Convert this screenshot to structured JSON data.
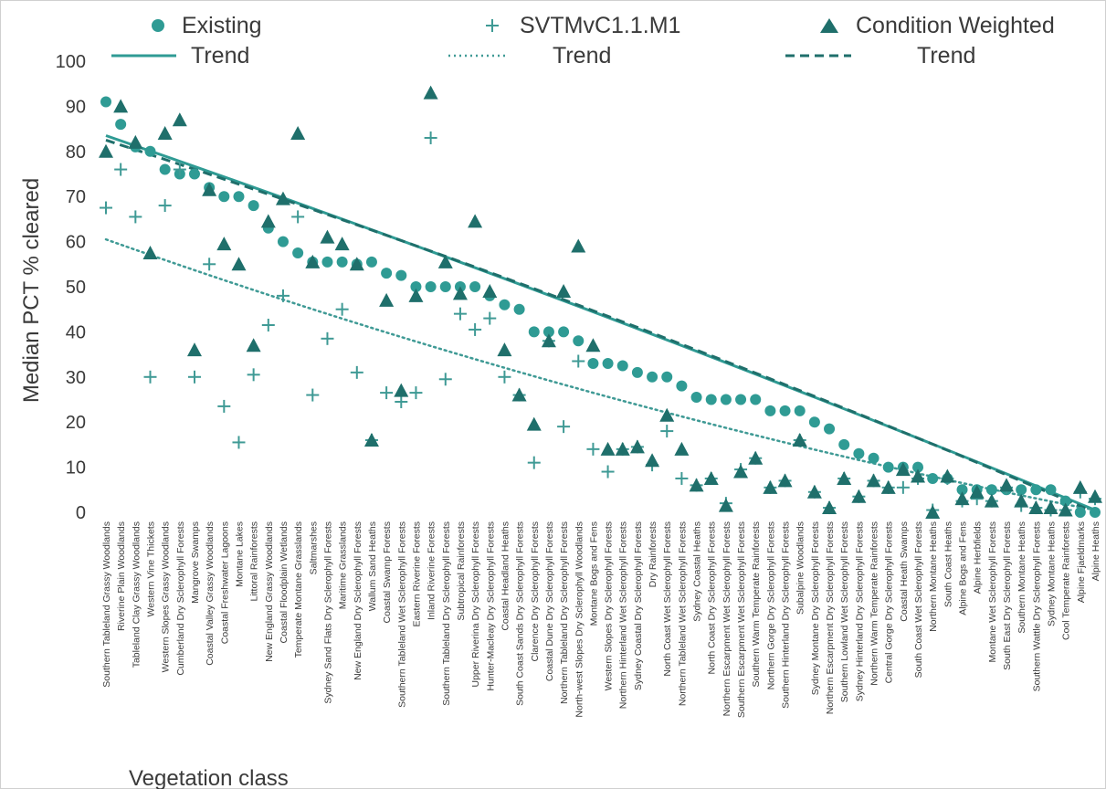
{
  "colors": {
    "existing": "#2f9b94",
    "svtm": "#3f9a95",
    "condition": "#1f6f6b",
    "trend_solid": "#2f9b94",
    "trend_dotted": "#3f9a95",
    "trend_dashed": "#1f6f6b",
    "text": "#3a3a3a"
  },
  "legend": {
    "existing": "Existing",
    "svtm": "SVTMvC1.1.M1",
    "condition": "Condition Weighted",
    "trend1": "Trend",
    "trend2": "Trend",
    "trend3": "Trend"
  },
  "chart_data": {
    "type": "scatter",
    "title": "",
    "xlabel": "Vegetation class",
    "ylabel": "Median PCT % cleared",
    "ylim": [
      0,
      100
    ],
    "y_ticks": [
      0,
      10,
      20,
      30,
      40,
      50,
      60,
      70,
      80,
      90,
      100
    ],
    "grid": false,
    "legend_position": "top",
    "categories": [
      "Southern Tableland Grassy Woodlands",
      "Riverine Plain Woodlands",
      "Tableland Clay Grassy Woodlands",
      "Western Vine Thickets",
      "Western Slopes Grassy Woodlands",
      "Cumberland Dry Sclerophyll Forests",
      "Mangrove Swamps",
      "Coastal Valley Grassy Woodlands",
      "Coastal Freshwater Lagoons",
      "Montane Lakes",
      "Littoral Rainforests",
      "New England Grassy Woodlands",
      "Coastal Floodplain Wetlands",
      "Temperate Montane Grasslands",
      "Saltmarshes",
      "Sydney Sand Flats Dry Sclerophyll Forests",
      "Maritime Grasslands",
      "New England Dry Sclerophyll Forests",
      "Wallum Sand Heaths",
      "Coastal Swamp Forests",
      "Southern Tableland Wet Sclerophyll Forests",
      "Eastern Riverine Forests",
      "Inland Riverine Forests",
      "Southern Tableland Dry Sclerophyll Forests",
      "Subtropical Rainforests",
      "Upper Riverina Dry Sclerophyll Forests",
      "Hunter-Macleay Dry Sclerophyll Forests",
      "Coastal Headland Heaths",
      "South Coast Sands Dry Sclerophyll Forests",
      "Clarence Dry Sclerophyll Forests",
      "Coastal Dune Dry Sclerophyll Forests",
      "Northern Tableland Dry Sclerophyll Forests",
      "North-west Slopes Dry Sclerophyll Woodlands",
      "Montane Bogs and Fens",
      "Western Slopes Dry Sclerophyll Forests",
      "Northern Hinterland Wet Sclerophyll Forests",
      "Sydney Coastal Dry Sclerophyll Forests",
      "Dry Rainforests",
      "North Coast Wet Sclerophyll Forests",
      "Northern Tableland Wet Sclerophyll Forests",
      "Sydney Coastal Heaths",
      "North Coast Dry Sclerophyll Forests",
      "Northern Escarpment Wet Sclerophyll Forests",
      "Southern Escarpment Wet Sclerophyll Forests",
      "Southern Warm Temperate Rainforests",
      "Northern Gorge Dry Sclerophyll Forests",
      "Southern Hinterland Dry Sclerophyll Forests",
      "Subalpine Woodlands",
      "Sydney Montane Dry Sclerophyll Forests",
      "Northern Escarpment Dry Sclerophyll Forests",
      "Southern Lowland Wet Sclerophyll Forests",
      "Sydney Hinterland Dry Sclerophyll Forests",
      "Northern Warm Temperate Rainforests",
      "Central Gorge Dry Sclerophyll Forests",
      "Coastal Heath Swamps",
      "South Coast Wet Sclerophyll Forests",
      "Northern Montane Heaths",
      "South Coast Heaths",
      "Alpine Bogs and Fens",
      "Alpine Herbfields",
      "Montane Wet Sclerophyll Forests",
      "South East Dry Sclerophyll Forests",
      "Southern Montane Heaths",
      "Southern Wattle Dry Sclerophyll Forests",
      "Sydney Montane Heaths",
      "Cool Temperate Rainforests",
      "Alpine Fjaeldmarks",
      "Alpine Heaths"
    ],
    "series": [
      {
        "name": "Existing",
        "marker": "circle",
        "values": [
          91,
          86,
          81,
          80,
          76,
          75,
          75,
          72,
          70,
          70,
          68,
          63,
          60,
          57.5,
          55.5,
          55.5,
          55.5,
          55,
          55.5,
          53,
          52.5,
          50,
          50,
          50,
          50,
          50,
          48,
          46,
          45,
          40,
          40,
          40,
          38,
          33,
          33,
          32.5,
          31,
          30,
          30,
          28,
          25.5,
          25,
          25,
          25,
          25,
          22.5,
          22.5,
          22.5,
          20,
          18.5,
          15,
          13,
          12,
          10,
          10,
          10,
          7.5,
          7.5,
          5,
          5,
          5,
          5,
          5,
          5,
          5,
          2.5,
          0,
          0
        ]
      },
      {
        "name": "SVTMvC1.1.M1",
        "marker": "plus",
        "values": [
          67.5,
          76,
          65.5,
          30,
          68,
          76,
          30,
          55,
          23.5,
          15.5,
          30.5,
          41.5,
          48,
          65.5,
          26,
          38.5,
          45,
          31,
          16,
          26.5,
          24.5,
          26.5,
          83,
          29.5,
          44,
          40.5,
          43,
          30,
          26,
          11,
          38,
          19,
          33.5,
          14,
          9,
          14,
          14.5,
          10.5,
          18,
          7.5,
          6,
          7.5,
          2,
          9.5,
          12,
          5.5,
          7,
          16,
          4.5,
          1,
          7.5,
          3.5,
          7,
          5.5,
          5.5,
          7.5,
          0.5,
          7.5,
          2.5,
          3,
          2.5,
          5.5,
          1.5,
          1,
          0.5,
          0.5,
          4.5,
          3
        ]
      },
      {
        "name": "Condition Weighted",
        "marker": "triangle",
        "values": [
          80,
          90,
          82,
          57.5,
          84,
          87,
          36,
          71.5,
          59.5,
          55,
          37,
          64.5,
          69.5,
          84,
          55.5,
          61,
          59.5,
          55,
          16,
          47,
          27,
          48,
          93,
          55.5,
          48.5,
          64.5,
          49,
          36,
          26,
          19.5,
          38,
          49,
          59,
          37,
          14,
          14,
          14.5,
          11.5,
          21.5,
          14,
          6,
          7.5,
          1.5,
          9,
          12,
          5.5,
          7,
          16,
          4.5,
          1,
          7.5,
          3.5,
          7,
          5.5,
          9.5,
          8,
          0,
          8,
          3,
          4.5,
          2.5,
          6,
          2.5,
          1,
          1,
          0.5,
          5.5,
          3.5
        ]
      }
    ],
    "trends": [
      {
        "name": "Trend",
        "style": "solid",
        "of": "Existing",
        "start": 83.5,
        "end": 0.5
      },
      {
        "name": "Trend",
        "style": "dotted",
        "of": "SVTMvC1.1.M1",
        "start": 60.5,
        "end": 0.5
      },
      {
        "name": "Trend",
        "style": "dashed",
        "of": "Condition Weighted",
        "start": 82.5,
        "end": 0.0
      }
    ]
  }
}
